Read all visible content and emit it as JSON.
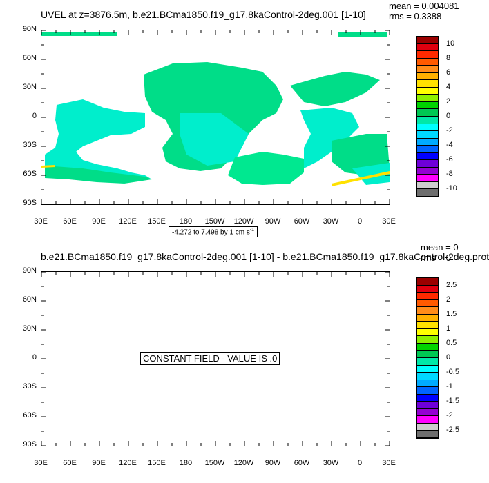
{
  "panels": [
    {
      "title": "UVEL at z=3876.5m, b.e21.BCma1850.f19_g17.8kaControl-2deg.001 [1-10]",
      "mean": "mean = 0.004081",
      "rms": "rms = 0.3388",
      "range_note": "-4.272 to 7.498 by 1 cm s",
      "range_note_sup": "-1",
      "colorbar_labels": [
        "10",
        "8",
        "6",
        "4",
        "2",
        "0",
        "-2",
        "-4",
        "-6",
        "-8",
        "-10"
      ]
    },
    {
      "title": "b.e21.BCma1850.f19_g17.8kaControl-2deg.001 [1-10] - b.e21.BCma1850.f19_g17.8kaControl-2deg.prot",
      "mean": "mean = 0",
      "rms": "rms = 0",
      "constant_field": "CONSTANT FIELD - VALUE IS .0",
      "colorbar_labels": [
        "2.5",
        "2",
        "1.5",
        "1",
        "0.5",
        "0",
        "-0.5",
        "-1",
        "-1.5",
        "-2",
        "-2.5"
      ]
    }
  ],
  "y_ticks": [
    "90N",
    "60N",
    "30N",
    "0",
    "30S",
    "60S",
    "90S"
  ],
  "x_ticks": [
    "30E",
    "60E",
    "90E",
    "120E",
    "150E",
    "180",
    "150W",
    "120W",
    "90W",
    "60W",
    "30W",
    "0",
    "30E"
  ],
  "colorbar_colors": [
    "#9b0000",
    "#e0000f",
    "#ff2a00",
    "#ff5a00",
    "#ff8c1a",
    "#ffb000",
    "#ffe100",
    "#ffff00",
    "#8cf000",
    "#00d400",
    "#00c853",
    "#00e8a8",
    "#00ffff",
    "#00d8ff",
    "#00aaff",
    "#0064ff",
    "#0000ff",
    "#6e00d8",
    "#9400d3",
    "#ff00ff",
    "#cccccc",
    "#6e6e6e"
  ],
  "map_field_colors": [
    "#00dd88",
    "#00eecc",
    "#00e890"
  ]
}
